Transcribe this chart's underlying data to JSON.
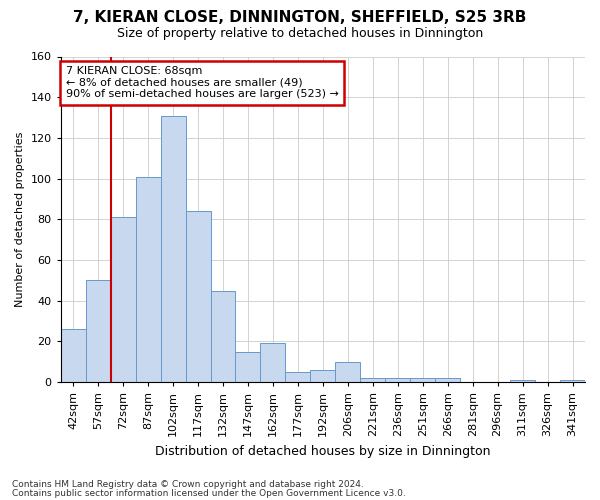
{
  "title": "7, KIERAN CLOSE, DINNINGTON, SHEFFIELD, S25 3RB",
  "subtitle": "Size of property relative to detached houses in Dinnington",
  "xlabel": "Distribution of detached houses by size in Dinnington",
  "ylabel": "Number of detached properties",
  "bar_labels": [
    "42sqm",
    "57sqm",
    "72sqm",
    "87sqm",
    "102sqm",
    "117sqm",
    "132sqm",
    "147sqm",
    "162sqm",
    "177sqm",
    "192sqm",
    "206sqm",
    "221sqm",
    "236sqm",
    "251sqm",
    "266sqm",
    "281sqm",
    "296sqm",
    "311sqm",
    "326sqm",
    "341sqm"
  ],
  "bar_values": [
    26,
    50,
    81,
    101,
    131,
    84,
    45,
    15,
    19,
    5,
    6,
    10,
    2,
    2,
    2,
    2,
    0,
    0,
    1,
    0,
    1
  ],
  "bar_color": "#c8d8ef",
  "bar_edge_color": "#6699cc",
  "ylim": [
    0,
    160
  ],
  "yticks": [
    0,
    20,
    40,
    60,
    80,
    100,
    120,
    140,
    160
  ],
  "vertical_line_x": 1.5,
  "vertical_line_color": "#cc0000",
  "annotation_title": "7 KIERAN CLOSE: 68sqm",
  "annotation_line1": "← 8% of detached houses are smaller (49)",
  "annotation_line2": "90% of semi-detached houses are larger (523) →",
  "annotation_box_facecolor": "#ffffff",
  "annotation_box_edgecolor": "#cc0000",
  "footer1": "Contains HM Land Registry data © Crown copyright and database right 2024.",
  "footer2": "Contains public sector information licensed under the Open Government Licence v3.0.",
  "background_color": "#ffffff",
  "grid_color": "#cccccc",
  "title_fontsize": 11,
  "subtitle_fontsize": 9,
  "xlabel_fontsize": 9,
  "ylabel_fontsize": 8,
  "tick_fontsize": 8,
  "annotation_fontsize": 8,
  "footer_fontsize": 6.5
}
